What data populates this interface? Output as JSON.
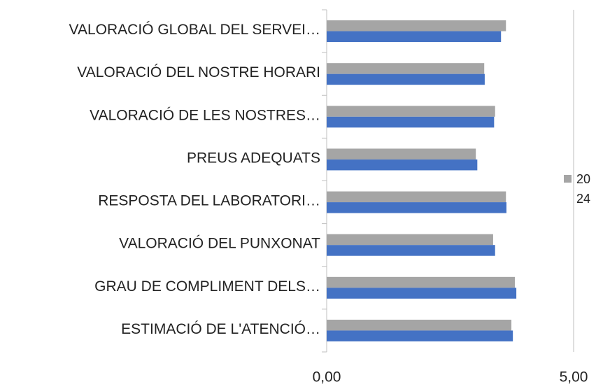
{
  "chart_data": {
    "type": "hbar",
    "categories": [
      "VALORACIÓ GLOBAL DEL SERVEI…",
      "VALORACIÓ DEL NOSTRE HORARI",
      "VALORACIÓ DE LES NOSTRES…",
      "PREUS ADEQUATS",
      "RESPOSTA DEL LABORATORI…",
      "VALORACIÓ DEL PUNXONAT",
      "GRAU DE COMPLIMENT DELS…",
      "ESTIMACIÓ DE L'ATENCIÓ…"
    ],
    "series": [
      {
        "name": "2024",
        "color": "#a5a5a5",
        "values": [
          3.63,
          3.19,
          3.41,
          3.02,
          3.63,
          3.37,
          3.81,
          3.74
        ]
      },
      {
        "color": "#4472c4",
        "values": [
          3.53,
          3.2,
          3.39,
          3.05,
          3.64,
          3.41,
          3.84,
          3.77
        ]
      }
    ],
    "xlim": [
      0,
      5
    ],
    "xticks": [
      {
        "value": 0,
        "label": "0,00"
      },
      {
        "value": 5,
        "label": "5,00"
      }
    ],
    "grid": true
  }
}
